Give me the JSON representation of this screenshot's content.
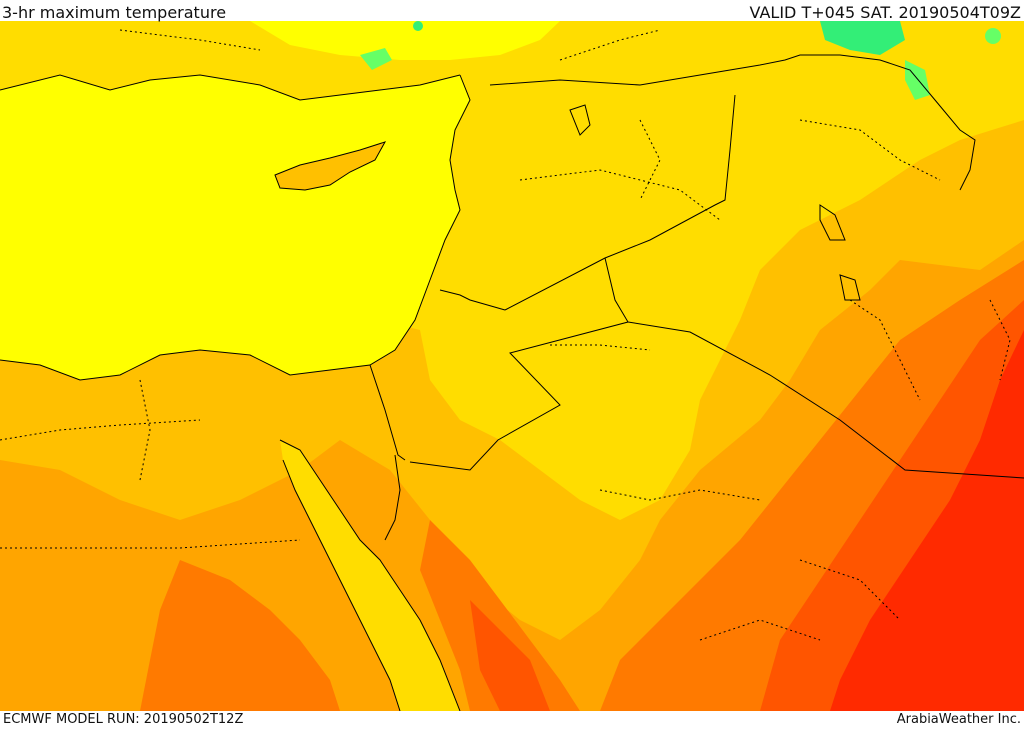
{
  "header": {
    "title": "3-hr maximum temperature",
    "valid_time": "VALID T+045 SAT. 20190504T09Z"
  },
  "footer": {
    "model_run": "ECMWF MODEL RUN: 20190502T12Z",
    "credit": "ArabiaWeather Inc."
  },
  "palette": {
    "sea_yellow": "#ffff00",
    "light_yellow": "#ffdd00",
    "yellow_orange": "#ffc000",
    "orange": "#ffa500",
    "dark_orange": "#ff7a00",
    "red_orange": "#ff5500",
    "red": "#ff2a00",
    "green": "#33ee77",
    "border_color": "#000000"
  }
}
